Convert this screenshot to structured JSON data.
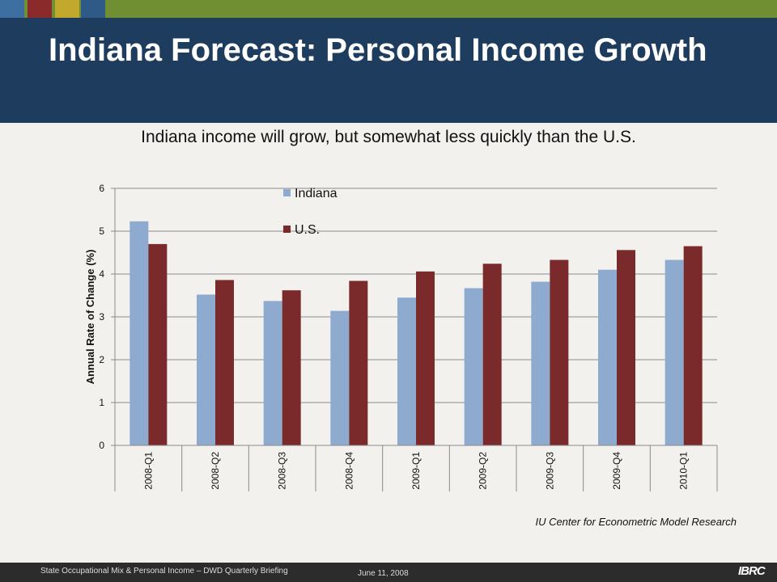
{
  "slide": {
    "title": "Indiana Forecast: Personal Income Growth",
    "subtitle": "Indiana income will grow, but somewhat less quickly than the U.S.",
    "source": "IU Center for Econometric Model Research",
    "footer_text": "State Occupational Mix & Personal Income – DWD Quarterly Briefing",
    "footer_date": "June 11, 2008",
    "footer_logo": "IBRC"
  },
  "colors": {
    "header_bg": "#1e3c5e",
    "top_strip": "#6f8f32",
    "indiana": "#8eabcf",
    "us": "#7a2a2a"
  },
  "chart_data": {
    "type": "bar",
    "categories": [
      "2008-Q1",
      "2008-Q2",
      "2008-Q3",
      "2008-Q4",
      "2009-Q1",
      "2009-Q2",
      "2009-Q3",
      "2009-Q4",
      "2010-Q1"
    ],
    "series": [
      {
        "name": "Indiana",
        "color": "#8eabcf",
        "values": [
          5.23,
          3.52,
          3.37,
          3.14,
          3.45,
          3.67,
          3.82,
          4.1,
          4.33
        ]
      },
      {
        "name": "U.S.",
        "color": "#7a2a2a",
        "values": [
          4.7,
          3.86,
          3.62,
          3.84,
          4.06,
          4.24,
          4.33,
          4.56,
          4.65
        ]
      }
    ],
    "ylabel": "Annual Rate of Change (%)",
    "xlabel": "",
    "ylim": [
      0,
      6
    ],
    "yticks": [
      0,
      1,
      2,
      3,
      4,
      5,
      6
    ],
    "grid": true,
    "legend_position": "top-center"
  }
}
